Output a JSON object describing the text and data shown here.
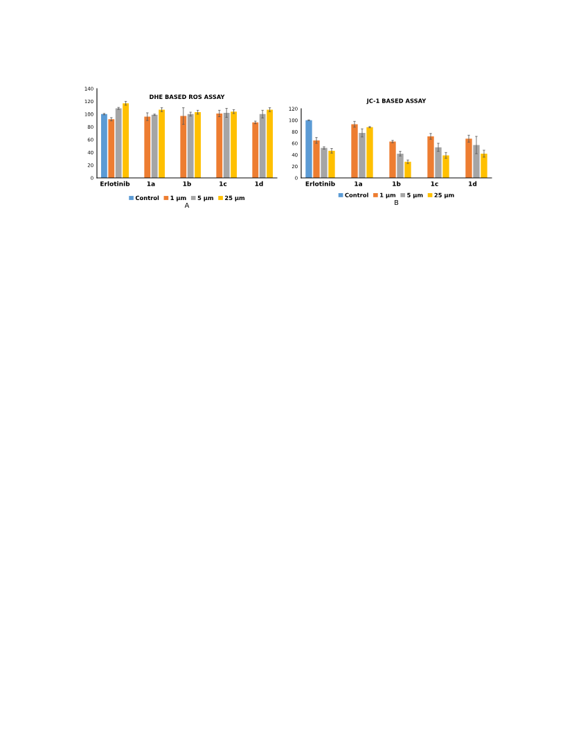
{
  "chart_data": [
    {
      "type": "bar",
      "title": "DHE BASED ROS ASSAY",
      "categories": [
        "Erlotinib",
        "1a",
        "1b",
        "1c",
        "1d"
      ],
      "series": [
        {
          "name": "Control",
          "color": "#5b9bd5",
          "values": [
            100,
            null,
            null,
            null,
            null
          ],
          "errors": [
            1,
            null,
            null,
            null,
            null
          ]
        },
        {
          "name": "1 µm",
          "color": "#ed7d31",
          "values": [
            92,
            96,
            97,
            101,
            87
          ],
          "errors": [
            2.5,
            6,
            13,
            5,
            2
          ]
        },
        {
          "name": "5 µm",
          "color": "#a5a5a5",
          "values": [
            109,
            99,
            100,
            102,
            100
          ],
          "errors": [
            1.5,
            1,
            3,
            7,
            6
          ]
        },
        {
          "name": "25 µm",
          "color": "#ffc000",
          "values": [
            117,
            107,
            103,
            104,
            107
          ],
          "errors": [
            3,
            3,
            3,
            3,
            3
          ]
        }
      ],
      "ylim": [
        0,
        140
      ],
      "yticks": [
        0,
        20,
        40,
        60,
        80,
        100,
        120,
        140
      ],
      "grid": false,
      "legend": "bottom",
      "annotations": [
        "A"
      ]
    },
    {
      "type": "bar",
      "title": "JC-1 BASED ASSAY",
      "categories": [
        "Erlotinib",
        "1a",
        "1b",
        "1c",
        "1d"
      ],
      "series": [
        {
          "name": "Control",
          "color": "#5b9bd5",
          "values": [
            100,
            null,
            null,
            null,
            null
          ],
          "errors": [
            0.5,
            null,
            null,
            null,
            null
          ]
        },
        {
          "name": "1 µm",
          "color": "#ed7d31",
          "values": [
            65,
            93,
            63,
            72,
            68
          ],
          "errors": [
            5,
            5,
            2,
            5,
            6
          ]
        },
        {
          "name": "5 µm",
          "color": "#a5a5a5",
          "values": [
            52,
            78,
            42,
            53,
            57
          ],
          "errors": [
            2,
            7,
            4,
            7,
            15
          ]
        },
        {
          "name": "25 µm",
          "color": "#ffc000",
          "values": [
            47,
            88,
            28,
            39,
            42
          ],
          "errors": [
            4,
            1,
            3,
            5,
            6
          ]
        }
      ],
      "ylim": [
        0,
        120
      ],
      "yticks": [
        0,
        20,
        40,
        60,
        80,
        100,
        120
      ],
      "grid": false,
      "legend": "bottom",
      "annotations": [
        "B"
      ]
    }
  ]
}
